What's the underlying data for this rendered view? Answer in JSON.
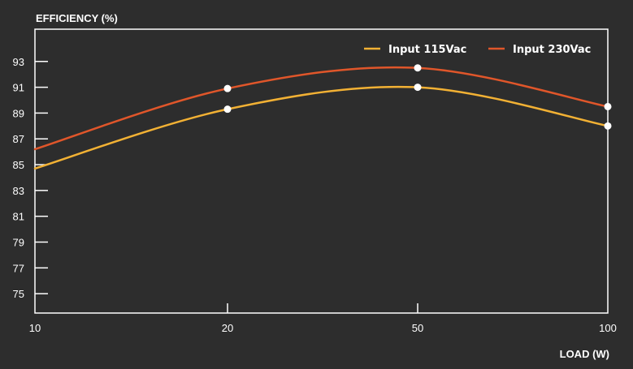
{
  "chart_data": {
    "type": "line",
    "ylabel": "EFFICIENCY (%)",
    "xlabel": "LOAD (W)",
    "x_categories": [
      "10",
      "20",
      "50",
      "100"
    ],
    "y_ticks": [
      75,
      77,
      79,
      81,
      83,
      85,
      87,
      89,
      91,
      93
    ],
    "ylim": [
      73.5,
      95.5
    ],
    "grid": false,
    "legend_position": "top-right",
    "series": [
      {
        "name": "Input 115Vac",
        "color": "#f2b134",
        "points": [
          {
            "x": 10,
            "y": 84.7
          },
          {
            "x": 20,
            "y": 89.3
          },
          {
            "x": 50,
            "y": 91.0
          },
          {
            "x": 100,
            "y": 88.0
          }
        ],
        "markers": [
          20,
          50,
          100
        ]
      },
      {
        "name": "Input 230Vac",
        "color": "#e0562a",
        "points": [
          {
            "x": 10,
            "y": 86.2
          },
          {
            "x": 20,
            "y": 90.9
          },
          {
            "x": 50,
            "y": 92.5
          },
          {
            "x": 100,
            "y": 89.5
          }
        ],
        "markers": [
          20,
          50,
          100
        ]
      }
    ]
  }
}
